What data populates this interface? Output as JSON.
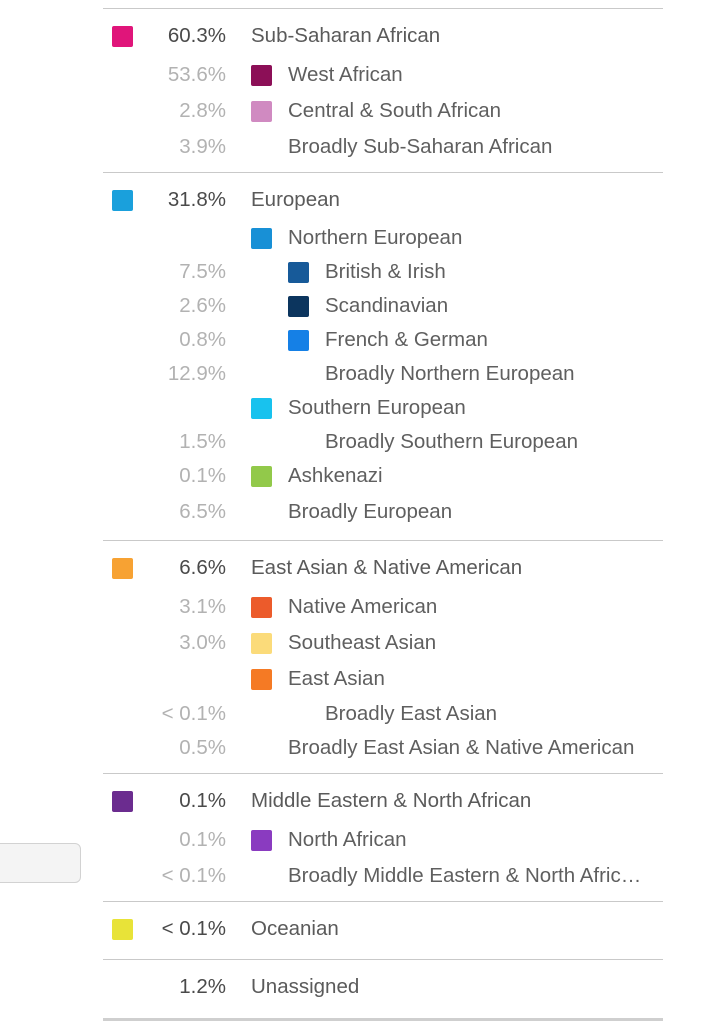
{
  "groups": [
    {
      "main": {
        "pct": "60.3%",
        "label": "Sub-Saharan African",
        "color": "#e0157a"
      },
      "rows": [
        {
          "pct": "53.6%",
          "label": "West African",
          "color": "#8c0f57",
          "indent": 1
        },
        {
          "pct": "2.8%",
          "label": "Central & South African",
          "color": "#d08ac1",
          "indent": 1
        },
        {
          "pct": "3.9%",
          "label": "Broadly Sub-Saharan African",
          "color": null,
          "indent": 1
        }
      ]
    },
    {
      "main": {
        "pct": "31.8%",
        "label": "European",
        "color": "#1aa0dc"
      },
      "rows": [
        {
          "pct": "",
          "label": "Northern European",
          "color": "#1890d6",
          "indent": 1
        },
        {
          "pct": "7.5%",
          "label": "British & Irish",
          "color": "#175a99",
          "indent": 2
        },
        {
          "pct": "2.6%",
          "label": "Scandinavian",
          "color": "#0c355e",
          "indent": 2
        },
        {
          "pct": "0.8%",
          "label": "French & German",
          "color": "#1580e6",
          "indent": 2
        },
        {
          "pct": "12.9%",
          "label": "Broadly Northern European",
          "color": null,
          "indent": 2
        },
        {
          "pct": "",
          "label": "Southern European",
          "color": "#18c2ee",
          "indent": 1
        },
        {
          "pct": "1.5%",
          "label": "Broadly Southern European",
          "color": null,
          "indent": 2
        },
        {
          "pct": "0.1%",
          "label": "Ashkenazi",
          "color": "#92c94a",
          "indent": 1
        },
        {
          "pct": "6.5%",
          "label": "Broadly European",
          "color": null,
          "indent": 1
        }
      ]
    },
    {
      "main": {
        "pct": "6.6%",
        "label": "East Asian & Native American",
        "color": "#f7a233"
      },
      "rows": [
        {
          "pct": "3.1%",
          "label": "Native American",
          "color": "#ec5b2b",
          "indent": 1
        },
        {
          "pct": "3.0%",
          "label": "Southeast Asian",
          "color": "#fbdb7a",
          "indent": 1
        },
        {
          "pct": "",
          "label": "East Asian",
          "color": "#f57a24",
          "indent": 1
        },
        {
          "pct": "< 0.1%",
          "label": "Broadly East Asian",
          "color": null,
          "indent": 2
        },
        {
          "pct": "0.5%",
          "label": "Broadly East Asian & Native American",
          "color": null,
          "indent": 1
        }
      ]
    },
    {
      "main": {
        "pct": "0.1%",
        "label": "Middle Eastern & North African",
        "color": "#6b2c8f"
      },
      "rows": [
        {
          "pct": "0.1%",
          "label": "North African",
          "color": "#8a3bc0",
          "indent": 1
        },
        {
          "pct": "< 0.1%",
          "label": "Broadly Middle Eastern & North Afric…",
          "color": null,
          "indent": 1
        }
      ]
    },
    {
      "main": {
        "pct": "< 0.1%",
        "label": "Oceanian",
        "color": "#e8e338"
      },
      "rows": []
    },
    {
      "main": {
        "pct": "1.2%",
        "label": "Unassigned",
        "color": null
      },
      "rows": []
    }
  ]
}
